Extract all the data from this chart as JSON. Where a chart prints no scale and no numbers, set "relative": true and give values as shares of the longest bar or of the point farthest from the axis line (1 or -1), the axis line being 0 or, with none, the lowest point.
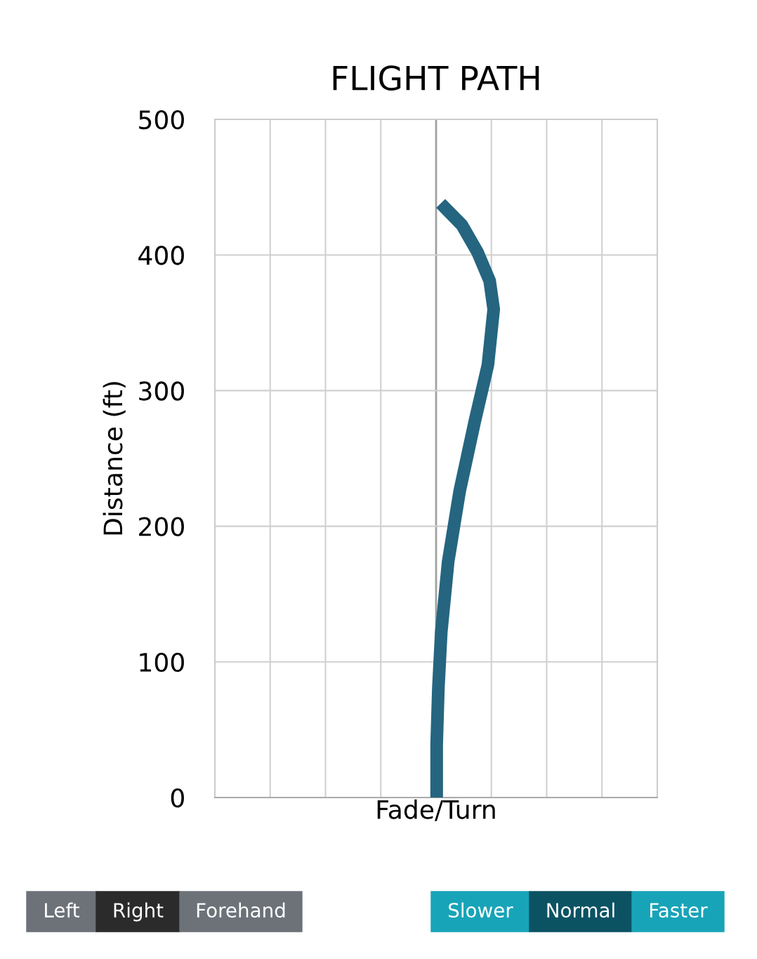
{
  "chart_data": {
    "type": "line",
    "title": "FLIGHT PATH",
    "xlabel": "Fade/Turn",
    "ylabel": "Distance (ft)",
    "orientation": "horizontal",
    "relative": true,
    "series": [
      {
        "color": "#256580",
        "x": [
          0,
          39,
          81,
          122,
          174,
          226,
          277,
          319,
          360,
          381,
          402,
          422,
          438
        ],
        "values": [
          0.01,
          0.01,
          0.04,
          0.09,
          0.21,
          0.41,
          0.67,
          0.9,
          1,
          0.93,
          0.72,
          0.45,
          0.08
        ]
      }
    ],
    "ylim": [
      0,
      500
    ],
    "yticks": [
      0,
      100,
      200,
      300,
      400,
      500
    ],
    "grid": true,
    "annotations": [
      "Left",
      "Right",
      "Forehand",
      "Slower",
      "Normal",
      "Faster"
    ]
  }
}
